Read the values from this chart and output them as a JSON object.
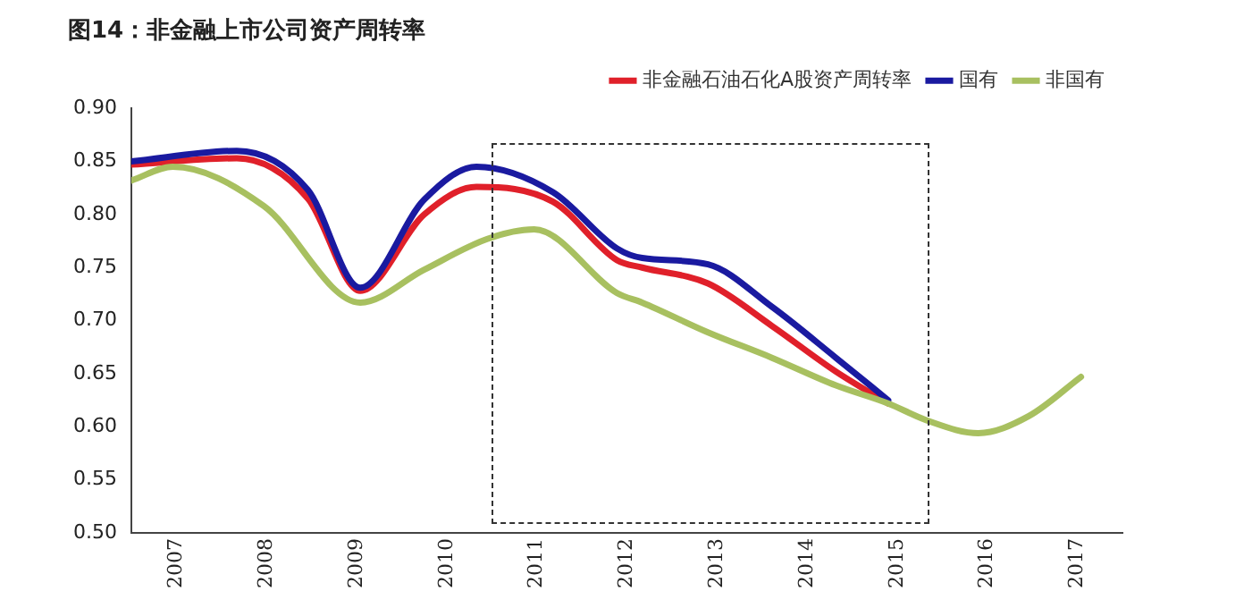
{
  "chart_data": {
    "type": "line",
    "title": "图14：非金融上市公司资产周转率",
    "series": [
      {
        "name": "非金融石油石化A股资产周转率",
        "color": "#e0202a",
        "x": [
          2006.5,
          2007.67,
          2008.46,
          2009.04,
          2009.75,
          2010.33,
          2011.18,
          2011.89,
          2012.17,
          2012.9,
          2013.61,
          2014.32,
          2014.9
        ],
        "values": [
          0.847,
          0.853,
          0.815,
          0.728,
          0.8,
          0.826,
          0.812,
          0.757,
          0.75,
          0.735,
          0.695,
          0.652,
          0.622
        ]
      },
      {
        "name": "国有",
        "color": "#1a1aa0",
        "x": [
          2006.5,
          2007.67,
          2008.46,
          2009.04,
          2009.75,
          2010.33,
          2011.18,
          2011.89,
          2012.17,
          2012.9,
          2013.61,
          2014.32,
          2014.9
        ],
        "values": [
          0.85,
          0.86,
          0.823,
          0.731,
          0.814,
          0.845,
          0.821,
          0.768,
          0.759,
          0.753,
          0.713,
          0.665,
          0.625
        ]
      },
      {
        "name": "非国有",
        "color": "#a8c060",
        "x": [
          2006.5,
          2006.96,
          2007.97,
          2009.04,
          2009.75,
          2010.45,
          2010.97,
          2011.89,
          2012.17,
          2012.9,
          2013.61,
          2014.32,
          2014.9,
          2015.33,
          2015.9,
          2016.46,
          2017.04
        ],
        "values": [
          0.832,
          0.845,
          0.808,
          0.717,
          0.748,
          0.777,
          0.786,
          0.726,
          0.717,
          0.689,
          0.665,
          0.639,
          0.622,
          0.606,
          0.594,
          0.61,
          0.647
        ]
      }
    ],
    "xlim": [
      2006.5,
      2017.5
    ],
    "xticks": [
      2007,
      2008,
      2009,
      2010,
      2011,
      2012,
      2013,
      2014,
      2015,
      2016,
      2017
    ],
    "ylim": [
      0.5,
      0.9
    ],
    "yticks": [
      {
        "value": 0.5,
        "label": "0.50"
      },
      {
        "value": 0.55,
        "label": "0.55"
      },
      {
        "value": 0.6,
        "label": "0.60"
      },
      {
        "value": 0.65,
        "label": "0.65"
      },
      {
        "value": 0.7,
        "label": "0.70"
      },
      {
        "value": 0.75,
        "label": "0.75"
      },
      {
        "value": 0.8,
        "label": "0.80"
      },
      {
        "value": 0.85,
        "label": "0.85"
      },
      {
        "value": 0.9,
        "label": "0.90"
      }
    ],
    "legend": "top",
    "grid": false,
    "marker": "none",
    "line_style": "solid"
  }
}
